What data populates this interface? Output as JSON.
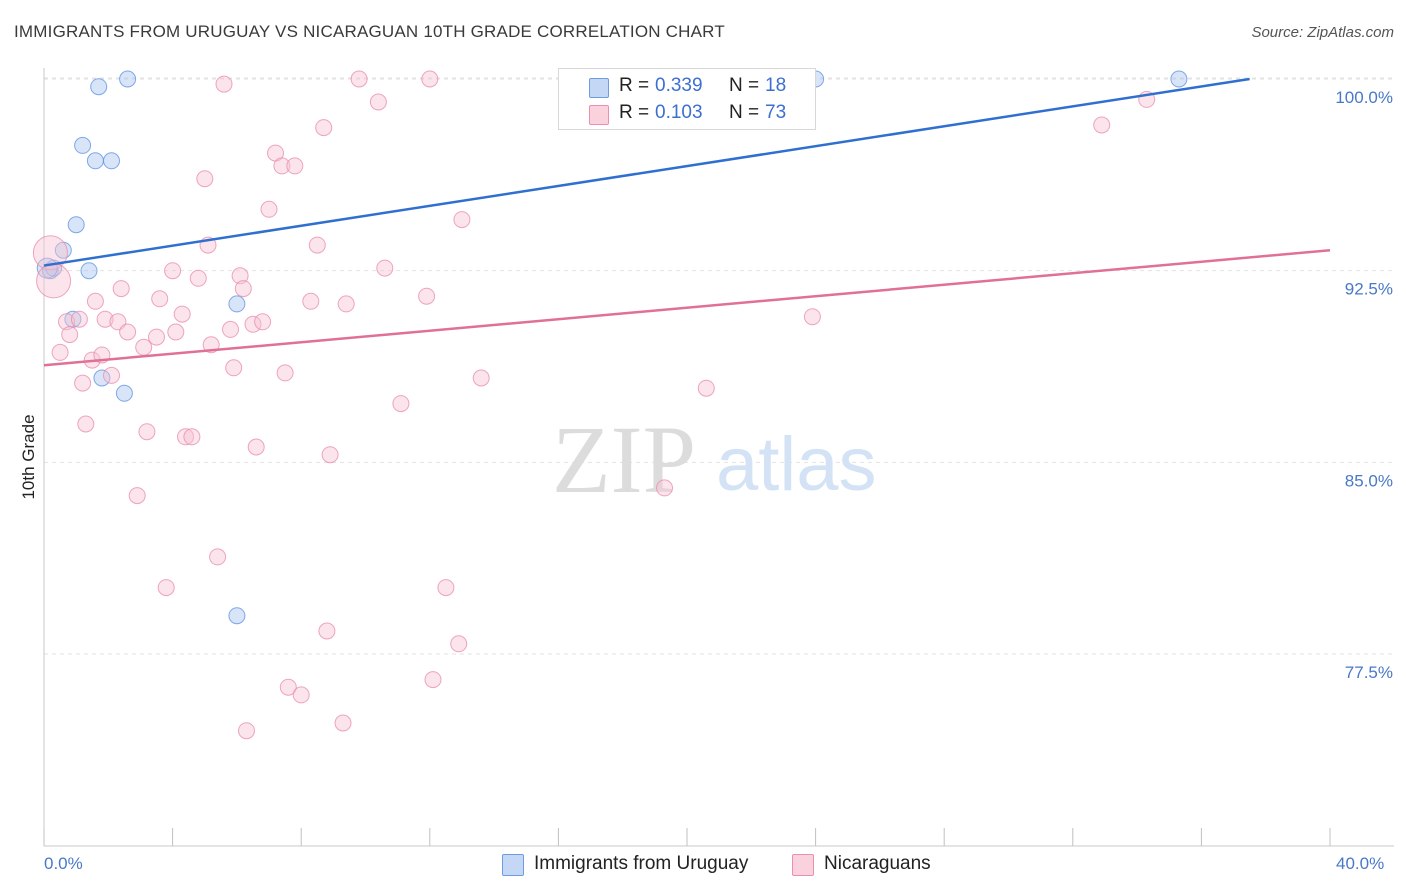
{
  "title": "IMMIGRANTS FROM URUGUAY VS NICARAGUAN 10TH GRADE CORRELATION CHART",
  "source": "Source: ZipAtlas.com",
  "watermark": {
    "zip": "ZIP",
    "atlas": "atlas"
  },
  "legend": {
    "rows": [
      {
        "r_label": "R =",
        "r_value": "0.339",
        "n_label": "N =",
        "n_value": "18",
        "color": "#a9c6f0",
        "border": "#6f9be0"
      },
      {
        "r_label": "R =",
        "r_value": "0.103",
        "n_label": "N =",
        "n_value": "73",
        "color": "#f7c3d3",
        "border": "#ea8fae"
      }
    ]
  },
  "bottom_legend": [
    {
      "label": "Immigrants from Uruguay",
      "color": "#c4d8f5",
      "border": "#6f9be0"
    },
    {
      "label": "Nicaraguans",
      "color": "#f9d2de",
      "border": "#ea8fae"
    }
  ],
  "chart_data": {
    "type": "scatter",
    "title": "IMMIGRANTS FROM URUGUAY VS NICARAGUAN 10TH GRADE CORRELATION CHART",
    "xlabel": "",
    "ylabel": "10th Grade",
    "xlim": [
      0,
      40
    ],
    "ylim": [
      71.0,
      101.0
    ],
    "x_tick_labels": [
      "0.0%",
      "40.0%"
    ],
    "y_ticks": [
      77.5,
      85.0,
      92.5,
      100.0
    ],
    "y_tick_labels": [
      "77.5%",
      "85.0%",
      "92.5%",
      "100.0%"
    ],
    "grid": true,
    "series": [
      {
        "name": "Immigrants from Uruguay",
        "color": "#5a8fe0",
        "fill": "#a9c6f0",
        "trend": {
          "x": [
            0,
            37.5
          ],
          "y": [
            92.7,
            100.0
          ],
          "color": "#2f6fd0"
        },
        "points": [
          [
            0.2,
            92.5,
            "s"
          ],
          [
            0.3,
            92.6,
            "s"
          ],
          [
            0.6,
            93.3,
            "s"
          ],
          [
            0.9,
            90.6,
            "s"
          ],
          [
            1.0,
            94.3,
            "s"
          ],
          [
            1.2,
            97.4,
            "s"
          ],
          [
            1.4,
            92.5,
            "s"
          ],
          [
            1.6,
            96.8,
            "s"
          ],
          [
            1.7,
            99.7,
            "s"
          ],
          [
            1.8,
            88.3,
            "s"
          ],
          [
            2.1,
            96.8,
            "s"
          ],
          [
            2.5,
            87.7,
            "s"
          ],
          [
            2.6,
            100.0,
            "s"
          ],
          [
            6.0,
            91.2,
            "s"
          ],
          [
            6.0,
            79.0,
            "s"
          ],
          [
            24.0,
            100.0,
            "s"
          ],
          [
            35.3,
            100.0,
            "s"
          ],
          [
            0.1,
            92.6,
            "m"
          ]
        ]
      },
      {
        "name": "Nicaraguans",
        "color": "#e88aaa",
        "fill": "#f7c3d3",
        "trend": {
          "x": [
            0,
            40
          ],
          "y": [
            88.8,
            93.3
          ],
          "color": "#e07098"
        },
        "points": [
          [
            0.2,
            93.2,
            "l"
          ],
          [
            0.3,
            92.1,
            "l"
          ],
          [
            0.5,
            89.3,
            "s"
          ],
          [
            0.7,
            90.5,
            "s"
          ],
          [
            0.8,
            90.0,
            "s"
          ],
          [
            1.1,
            90.6,
            "s"
          ],
          [
            1.2,
            88.1,
            "s"
          ],
          [
            1.3,
            86.5,
            "s"
          ],
          [
            1.5,
            89.0,
            "s"
          ],
          [
            1.6,
            91.3,
            "s"
          ],
          [
            1.8,
            89.2,
            "s"
          ],
          [
            1.9,
            90.6,
            "s"
          ],
          [
            2.1,
            88.4,
            "s"
          ],
          [
            2.3,
            90.5,
            "s"
          ],
          [
            2.4,
            91.8,
            "s"
          ],
          [
            2.6,
            90.1,
            "s"
          ],
          [
            2.9,
            83.7,
            "s"
          ],
          [
            3.1,
            89.5,
            "s"
          ],
          [
            3.2,
            86.2,
            "s"
          ],
          [
            3.5,
            89.9,
            "s"
          ],
          [
            3.6,
            91.4,
            "s"
          ],
          [
            3.8,
            80.1,
            "s"
          ],
          [
            4.0,
            92.5,
            "s"
          ],
          [
            4.1,
            90.1,
            "s"
          ],
          [
            4.3,
            90.8,
            "s"
          ],
          [
            4.4,
            86.0,
            "s"
          ],
          [
            4.6,
            86.0,
            "s"
          ],
          [
            4.8,
            92.2,
            "s"
          ],
          [
            5.0,
            96.1,
            "s"
          ],
          [
            5.1,
            93.5,
            "s"
          ],
          [
            5.2,
            89.6,
            "s"
          ],
          [
            5.4,
            81.3,
            "s"
          ],
          [
            5.6,
            99.8,
            "s"
          ],
          [
            5.8,
            90.2,
            "s"
          ],
          [
            5.9,
            88.7,
            "s"
          ],
          [
            6.1,
            92.3,
            "s"
          ],
          [
            6.2,
            91.8,
            "s"
          ],
          [
            6.3,
            74.5,
            "s"
          ],
          [
            6.5,
            90.4,
            "s"
          ],
          [
            6.6,
            85.6,
            "s"
          ],
          [
            6.8,
            90.5,
            "s"
          ],
          [
            7.0,
            94.9,
            "s"
          ],
          [
            7.2,
            97.1,
            "s"
          ],
          [
            7.4,
            96.6,
            "s"
          ],
          [
            7.5,
            88.5,
            "s"
          ],
          [
            7.6,
            76.2,
            "s"
          ],
          [
            7.8,
            96.6,
            "s"
          ],
          [
            8.0,
            75.9,
            "s"
          ],
          [
            8.3,
            91.3,
            "s"
          ],
          [
            8.5,
            93.5,
            "s"
          ],
          [
            8.7,
            98.1,
            "s"
          ],
          [
            8.8,
            78.4,
            "s"
          ],
          [
            8.9,
            85.3,
            "s"
          ],
          [
            9.3,
            74.8,
            "s"
          ],
          [
            9.4,
            91.2,
            "s"
          ],
          [
            9.8,
            100.0,
            "s"
          ],
          [
            10.4,
            99.1,
            "s"
          ],
          [
            10.6,
            92.6,
            "s"
          ],
          [
            11.1,
            87.3,
            "s"
          ],
          [
            11.9,
            91.5,
            "s"
          ],
          [
            12.0,
            100.0,
            "s"
          ],
          [
            12.1,
            76.5,
            "s"
          ],
          [
            12.5,
            80.1,
            "s"
          ],
          [
            12.9,
            77.9,
            "s"
          ],
          [
            13.0,
            94.5,
            "s"
          ],
          [
            13.6,
            88.3,
            "s"
          ],
          [
            16.8,
            100.0,
            "s"
          ],
          [
            19.3,
            84.0,
            "s"
          ],
          [
            20.6,
            87.9,
            "s"
          ],
          [
            21.8,
            100.0,
            "s"
          ],
          [
            23.9,
            90.7,
            "s"
          ],
          [
            32.9,
            98.2,
            "s"
          ],
          [
            34.3,
            99.2,
            "s"
          ]
        ]
      }
    ]
  }
}
